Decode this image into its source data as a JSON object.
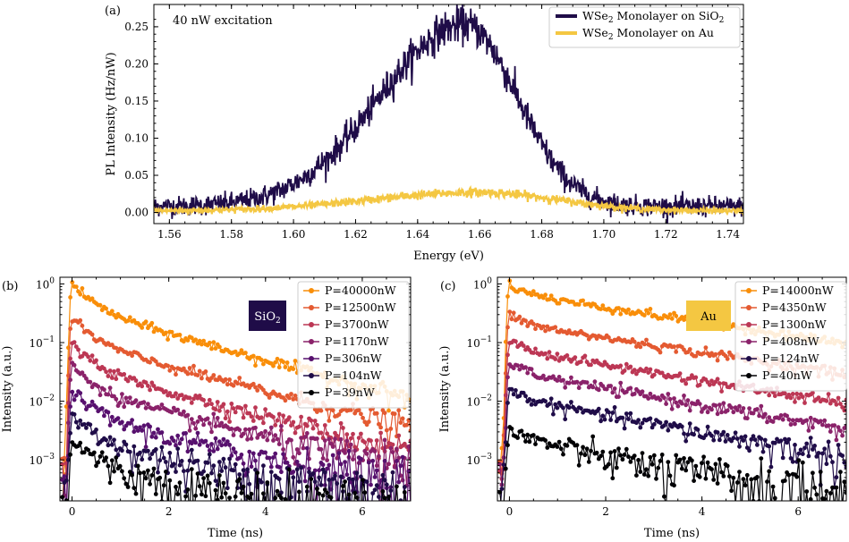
{
  "chart_data": [
    {
      "type": "line",
      "panel_label": "(a)",
      "annotation": "40 nW excitation",
      "xlabel": "Energy (eV)",
      "ylabel": "PL Intensity (Hz/nW)",
      "xlim": [
        1.555,
        1.745
      ],
      "ylim": [
        -0.015,
        0.28
      ],
      "xticks": [
        "1.56",
        "1.58",
        "1.60",
        "1.62",
        "1.64",
        "1.66",
        "1.68",
        "1.70",
        "1.72",
        "1.74"
      ],
      "yticks": [
        "0.00",
        "0.05",
        "0.10",
        "0.15",
        "0.20",
        "0.25"
      ],
      "legend_position": "top-right",
      "series": [
        {
          "name_main": "WSe",
          "name_sub": "2",
          "name_rest": " Monolayer on SiO",
          "name_sub2": "2",
          "name_tail": "",
          "color": "#1f0c48",
          "peak_energy": 1.655,
          "amplitude": 0.245,
          "width_low": 0.027,
          "width_high": 0.017,
          "baseline": 0.008,
          "noise": 0.012
        },
        {
          "name_main": "WSe",
          "name_sub": "2",
          "name_rest": " Monolayer on Au",
          "name_sub2": "",
          "name_tail": "",
          "color": "#f4c742",
          "peak_energy": 1.66,
          "amplitude": 0.025,
          "width_low": 0.035,
          "width_high": 0.025,
          "baseline": 0.002,
          "noise": 0.003
        }
      ]
    },
    {
      "type": "line",
      "panel_label": "(b)",
      "substrate": "SiO",
      "substrate_sub": "2",
      "substrate_color": "#1f0c48",
      "xlabel": "Time (ns)",
      "ylabel": "Intensity (a.u.)",
      "xlim": [
        -0.25,
        7.0
      ],
      "yscale": "log",
      "ylim": [
        0.0002,
        1.3
      ],
      "xticks": [
        "0",
        "2",
        "4",
        "6"
      ],
      "yticks": [
        "10^0",
        "10^-1",
        "10^-2",
        "10^-3"
      ],
      "legend_position": "top-right",
      "series": [
        {
          "name": "P=40000nW",
          "color": "#f98e09",
          "peak": 1.0,
          "a_fast": 0.6,
          "tau_fast": 0.35,
          "tau_slow": 1.9,
          "floor": 0.002
        },
        {
          "name": "P=12500nW",
          "color": "#e45a31",
          "peak": 0.26,
          "a_fast": 0.6,
          "tau_fast": 0.35,
          "tau_slow": 2.0,
          "floor": 0.001
        },
        {
          "name": "P=3700nW",
          "color": "#bc3754",
          "peak": 0.095,
          "a_fast": 0.6,
          "tau_fast": 0.35,
          "tau_slow": 2.0,
          "floor": 0.0006
        },
        {
          "name": "P=1170nW",
          "color": "#8a226a",
          "peak": 0.04,
          "a_fast": 0.6,
          "tau_fast": 0.35,
          "tau_slow": 2.0,
          "floor": 0.0005
        },
        {
          "name": "P=306nW",
          "color": "#57106e",
          "peak": 0.015,
          "a_fast": 0.6,
          "tau_fast": 0.35,
          "tau_slow": 2.0,
          "floor": 0.0004
        },
        {
          "name": "P=104nW",
          "color": "#1f0c48",
          "peak": 0.0055,
          "a_fast": 0.6,
          "tau_fast": 0.35,
          "tau_slow": 2.0,
          "floor": 0.0003
        },
        {
          "name": "P=39nW",
          "color": "#000004",
          "peak": 0.002,
          "a_fast": 0.6,
          "tau_fast": 0.4,
          "tau_slow": 1.8,
          "floor": 0.0002
        }
      ]
    },
    {
      "type": "line",
      "panel_label": "(c)",
      "substrate": "Au",
      "substrate_sub": "",
      "substrate_color": "#f4c742",
      "xlabel": "Time (ns)",
      "ylabel": "Intensity (a.u.)",
      "xlim": [
        -0.25,
        7.0
      ],
      "yscale": "log",
      "ylim": [
        0.0002,
        1.3
      ],
      "xticks": [
        "0",
        "2",
        "4",
        "6"
      ],
      "yticks": [
        "10^0",
        "10^-1",
        "10^-2",
        "10^-3"
      ],
      "legend_position": "top-right",
      "series": [
        {
          "name": "P=14000nW",
          "color": "#f98e09",
          "peak": 1.0,
          "a_fast": 0.3,
          "tau_fast": 0.3,
          "tau_slow": 3.5,
          "floor": 0.002
        },
        {
          "name": "P=4350nW",
          "color": "#e45a31",
          "peak": 0.3,
          "a_fast": 0.3,
          "tau_fast": 0.3,
          "tau_slow": 3.5,
          "floor": 0.001
        },
        {
          "name": "P=1300nW",
          "color": "#bc3754",
          "peak": 0.11,
          "a_fast": 0.3,
          "tau_fast": 0.3,
          "tau_slow": 3.2,
          "floor": 0.0006
        },
        {
          "name": "P=408nW",
          "color": "#8a226a",
          "peak": 0.045,
          "a_fast": 0.3,
          "tau_fast": 0.3,
          "tau_slow": 3.0,
          "floor": 0.0005
        },
        {
          "name": "P=124nW",
          "color": "#1f0c48",
          "peak": 0.016,
          "a_fast": 0.3,
          "tau_fast": 0.3,
          "tau_slow": 2.8,
          "floor": 0.0004
        },
        {
          "name": "P=40nW",
          "color": "#000004",
          "peak": 0.003,
          "a_fast": 0.2,
          "tau_fast": 0.3,
          "tau_slow": 2.2,
          "floor": 0.0003
        }
      ]
    }
  ]
}
